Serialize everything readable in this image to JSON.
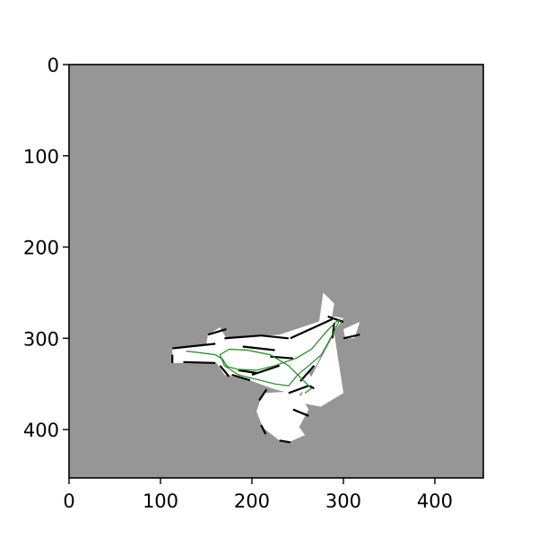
{
  "chart_data": {
    "type": "heatmap",
    "title": "",
    "xlabel": "",
    "ylabel": "",
    "xlim": [
      0,
      453
    ],
    "ylim": [
      453,
      0
    ],
    "y_axis_inverted": true,
    "x_ticks": [
      0,
      100,
      200,
      300,
      400
    ],
    "y_ticks": [
      0,
      100,
      200,
      300,
      400
    ],
    "x_tick_labels": [
      "0",
      "100",
      "200",
      "300",
      "400"
    ],
    "y_tick_labels": [
      "0",
      "100",
      "200",
      "300",
      "400"
    ],
    "grid": false,
    "legend": "none",
    "colors": {
      "unknown": "#969696",
      "free": "#ffffff",
      "occupied": "#000000",
      "trajectory": "#1a8c1a",
      "axes": "#000000"
    },
    "free_regions": [
      [
        [
          113,
          310
        ],
        [
          160,
          305
        ],
        [
          175,
          300
        ],
        [
          230,
          296
        ],
        [
          290,
          276
        ],
        [
          300,
          278
        ],
        [
          285,
          300
        ],
        [
          270,
          330
        ],
        [
          255,
          345
        ],
        [
          240,
          360
        ],
        [
          220,
          345
        ],
        [
          190,
          335
        ],
        [
          165,
          327
        ],
        [
          113,
          327
        ]
      ],
      [
        [
          152,
          296
        ],
        [
          165,
          288
        ],
        [
          172,
          300
        ],
        [
          160,
          310
        ],
        [
          150,
          307
        ]
      ],
      [
        [
          166,
          303
        ],
        [
          200,
          302
        ],
        [
          230,
          320
        ],
        [
          260,
          335
        ],
        [
          270,
          350
        ],
        [
          250,
          362
        ],
        [
          225,
          356
        ],
        [
          195,
          345
        ],
        [
          170,
          340
        ],
        [
          160,
          325
        ]
      ],
      [
        [
          250,
          370
        ],
        [
          290,
          295
        ],
        [
          300,
          360
        ],
        [
          275,
          375
        ]
      ],
      [
        [
          273,
          285
        ],
        [
          278,
          250
        ],
        [
          290,
          262
        ],
        [
          285,
          290
        ]
      ],
      [
        [
          300,
          290
        ],
        [
          318,
          282
        ],
        [
          312,
          300
        ],
        [
          302,
          300
        ]
      ],
      [
        [
          212,
          360
        ],
        [
          250,
          358
        ],
        [
          262,
          378
        ],
        [
          250,
          400
        ],
        [
          230,
          412
        ],
        [
          212,
          398
        ],
        [
          205,
          380
        ]
      ],
      [
        [
          225,
          395
        ],
        [
          250,
          395
        ],
        [
          258,
          406
        ],
        [
          240,
          414
        ],
        [
          228,
          410
        ]
      ],
      [
        [
          190,
          312
        ],
        [
          215,
          315
        ],
        [
          235,
          325
        ],
        [
          220,
          330
        ],
        [
          195,
          328
        ]
      ]
    ],
    "occupied_segments": [
      [
        [
          113,
          311
        ],
        [
          160,
          306
        ]
      ],
      [
        [
          113,
          318
        ],
        [
          113,
          327
        ]
      ],
      [
        [
          125,
          326
        ],
        [
          160,
          327
        ]
      ],
      [
        [
          152,
          296
        ],
        [
          172,
          290
        ]
      ],
      [
        [
          170,
          300
        ],
        [
          210,
          297
        ]
      ],
      [
        [
          210,
          297
        ],
        [
          240,
          300
        ]
      ],
      [
        [
          242,
          300
        ],
        [
          288,
          279
        ]
      ],
      [
        [
          283,
          276
        ],
        [
          300,
          282
        ]
      ],
      [
        [
          290,
          283
        ],
        [
          288,
          300
        ]
      ],
      [
        [
          268,
          330
        ],
        [
          253,
          347
        ]
      ],
      [
        [
          240,
          360
        ],
        [
          262,
          352
        ]
      ],
      [
        [
          263,
          352
        ],
        [
          268,
          355
        ]
      ],
      [
        [
          165,
          330
        ],
        [
          175,
          342
        ]
      ],
      [
        [
          178,
          340
        ],
        [
          198,
          346
        ]
      ],
      [
        [
          200,
          340
        ],
        [
          230,
          330
        ]
      ],
      [
        [
          208,
          368
        ],
        [
          216,
          356
        ]
      ],
      [
        [
          245,
          378
        ],
        [
          262,
          385
        ]
      ],
      [
        [
          230,
          412
        ],
        [
          242,
          414
        ]
      ],
      [
        [
          210,
          395
        ],
        [
          215,
          405
        ]
      ],
      [
        [
          300,
          300
        ],
        [
          318,
          296
        ]
      ],
      [
        [
          185,
          335
        ],
        [
          205,
          338
        ]
      ],
      [
        [
          220,
          320
        ],
        [
          245,
          322
        ]
      ],
      [
        [
          190,
          309
        ],
        [
          225,
          313
        ]
      ]
    ],
    "trajectory": [
      [
        128,
        314
      ],
      [
        145,
        316
      ],
      [
        160,
        318
      ],
      [
        168,
        323
      ],
      [
        173,
        331
      ],
      [
        185,
        334
      ],
      [
        205,
        335
      ],
      [
        225,
        330
      ],
      [
        248,
        322
      ],
      [
        265,
        312
      ],
      [
        282,
        292
      ],
      [
        292,
        282
      ],
      [
        296,
        280
      ],
      [
        286,
        300
      ],
      [
        276,
        318
      ],
      [
        262,
        330
      ],
      [
        250,
        340
      ],
      [
        240,
        352
      ],
      [
        225,
        350
      ],
      [
        205,
        345
      ],
      [
        185,
        340
      ],
      [
        170,
        330
      ],
      [
        165,
        318
      ],
      [
        175,
        312
      ],
      [
        195,
        313
      ],
      [
        220,
        318
      ],
      [
        240,
        330
      ],
      [
        255,
        345
      ],
      [
        265,
        355
      ],
      [
        258,
        360
      ]
    ]
  }
}
